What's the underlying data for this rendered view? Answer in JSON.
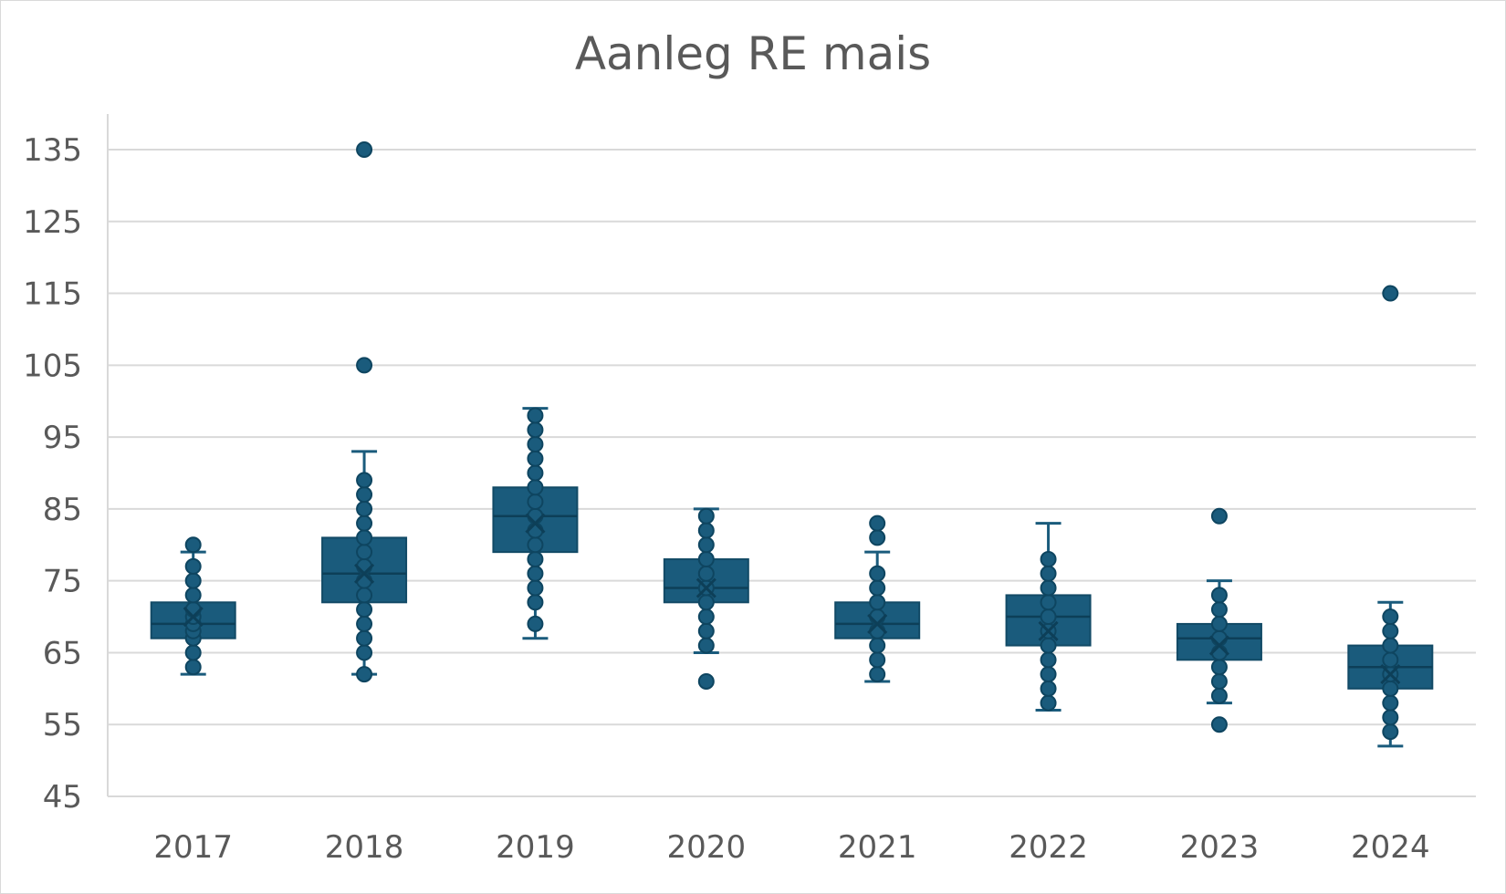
{
  "chart_data": {
    "type": "boxplot",
    "title": "Aanleg RE mais",
    "xlabel": "",
    "ylabel": "",
    "ylim": [
      45,
      135
    ],
    "yticks": [
      45,
      55,
      65,
      75,
      85,
      95,
      105,
      115,
      125,
      135
    ],
    "grid": true,
    "color": "#1a5b7c",
    "categories": [
      "2017",
      "2018",
      "2019",
      "2020",
      "2021",
      "2022",
      "2023",
      "2024"
    ],
    "boxes": [
      {
        "category": "2017",
        "whisker_low": 62,
        "q1": 67,
        "median": 69,
        "q3": 72,
        "whisker_high": 79,
        "mean": 70,
        "points": [
          63,
          65,
          67,
          68,
          69,
          70,
          71,
          73,
          75,
          77,
          80
        ]
      },
      {
        "category": "2018",
        "whisker_low": 62,
        "q1": 72,
        "median": 76,
        "q3": 81,
        "whisker_high": 93,
        "mean": 76,
        "points": [
          62,
          65,
          67,
          69,
          71,
          73,
          75,
          77,
          79,
          81,
          83,
          85,
          87,
          89,
          105,
          135
        ]
      },
      {
        "category": "2019",
        "whisker_low": 67,
        "q1": 79,
        "median": 84,
        "q3": 88,
        "whisker_high": 99,
        "mean": 83,
        "points": [
          69,
          72,
          74,
          76,
          78,
          80,
          82,
          84,
          86,
          88,
          90,
          92,
          94,
          96,
          98
        ]
      },
      {
        "category": "2020",
        "whisker_low": 65,
        "q1": 72,
        "median": 74,
        "q3": 78,
        "whisker_high": 85,
        "mean": 74,
        "points": [
          61,
          66,
          68,
          70,
          72,
          74,
          76,
          78,
          80,
          82,
          84
        ]
      },
      {
        "category": "2021",
        "whisker_low": 61,
        "q1": 67,
        "median": 69,
        "q3": 72,
        "whisker_high": 79,
        "mean": 69,
        "points": [
          62,
          64,
          66,
          68,
          70,
          72,
          74,
          76,
          81,
          83
        ]
      },
      {
        "category": "2022",
        "whisker_low": 57,
        "q1": 66,
        "median": 70,
        "q3": 73,
        "whisker_high": 83,
        "mean": 68,
        "points": [
          58,
          60,
          62,
          64,
          66,
          68,
          70,
          72,
          74,
          76,
          78
        ]
      },
      {
        "category": "2023",
        "whisker_low": 58,
        "q1": 64,
        "median": 67,
        "q3": 69,
        "whisker_high": 75,
        "mean": 66,
        "points": [
          55,
          59,
          61,
          63,
          65,
          67,
          69,
          71,
          73,
          84
        ]
      },
      {
        "category": "2024",
        "whisker_low": 52,
        "q1": 60,
        "median": 63,
        "q3": 66,
        "whisker_high": 72,
        "mean": 62,
        "points": [
          54,
          56,
          58,
          60,
          62,
          64,
          66,
          68,
          70,
          115
        ]
      }
    ]
  }
}
